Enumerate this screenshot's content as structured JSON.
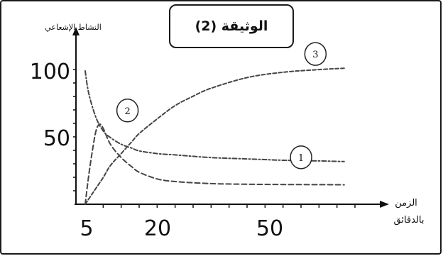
{
  "document": {
    "title": "الوثيقة (2)"
  },
  "chart_data": {
    "type": "line",
    "title": "",
    "ylabel": "النشاط الإشعاعي",
    "xlabel": "الزمن بالدقائق",
    "xlabel_lines": [
      "الزمن",
      "بالدقائق"
    ],
    "x_ticks": [
      5,
      20,
      50
    ],
    "y_ticks": [
      50,
      100
    ],
    "xlim": [
      5,
      80
    ],
    "ylim": [
      0,
      110
    ],
    "grid": false,
    "series": [
      {
        "name": "1",
        "x": [
          5,
          6,
          8,
          10,
          12,
          15,
          18,
          20,
          25,
          30,
          40,
          50,
          60,
          70,
          77
        ],
        "y": [
          100,
          83,
          65,
          55,
          50,
          45,
          42,
          40,
          38,
          37,
          35,
          34,
          33,
          32.5,
          32
        ]
      },
      {
        "name": "2",
        "x": [
          5,
          6,
          7,
          8,
          9,
          10,
          12,
          15,
          18,
          20,
          25,
          30,
          40,
          50,
          60,
          70,
          77
        ],
        "y": [
          0,
          22,
          40,
          55,
          60,
          57,
          45,
          35,
          28,
          24,
          19,
          17,
          15.5,
          15,
          14.8,
          14.7,
          14.6
        ]
      },
      {
        "name": "3",
        "x": [
          5,
          8,
          10,
          12,
          15,
          18,
          20,
          25,
          30,
          35,
          40,
          50,
          60,
          70,
          77
        ],
        "y": [
          0,
          12,
          20,
          29,
          38,
          47,
          53,
          64,
          74,
          81,
          87,
          95,
          99,
          101,
          102
        ]
      }
    ],
    "curve_labels": [
      "1",
      "2",
      "3"
    ]
  }
}
